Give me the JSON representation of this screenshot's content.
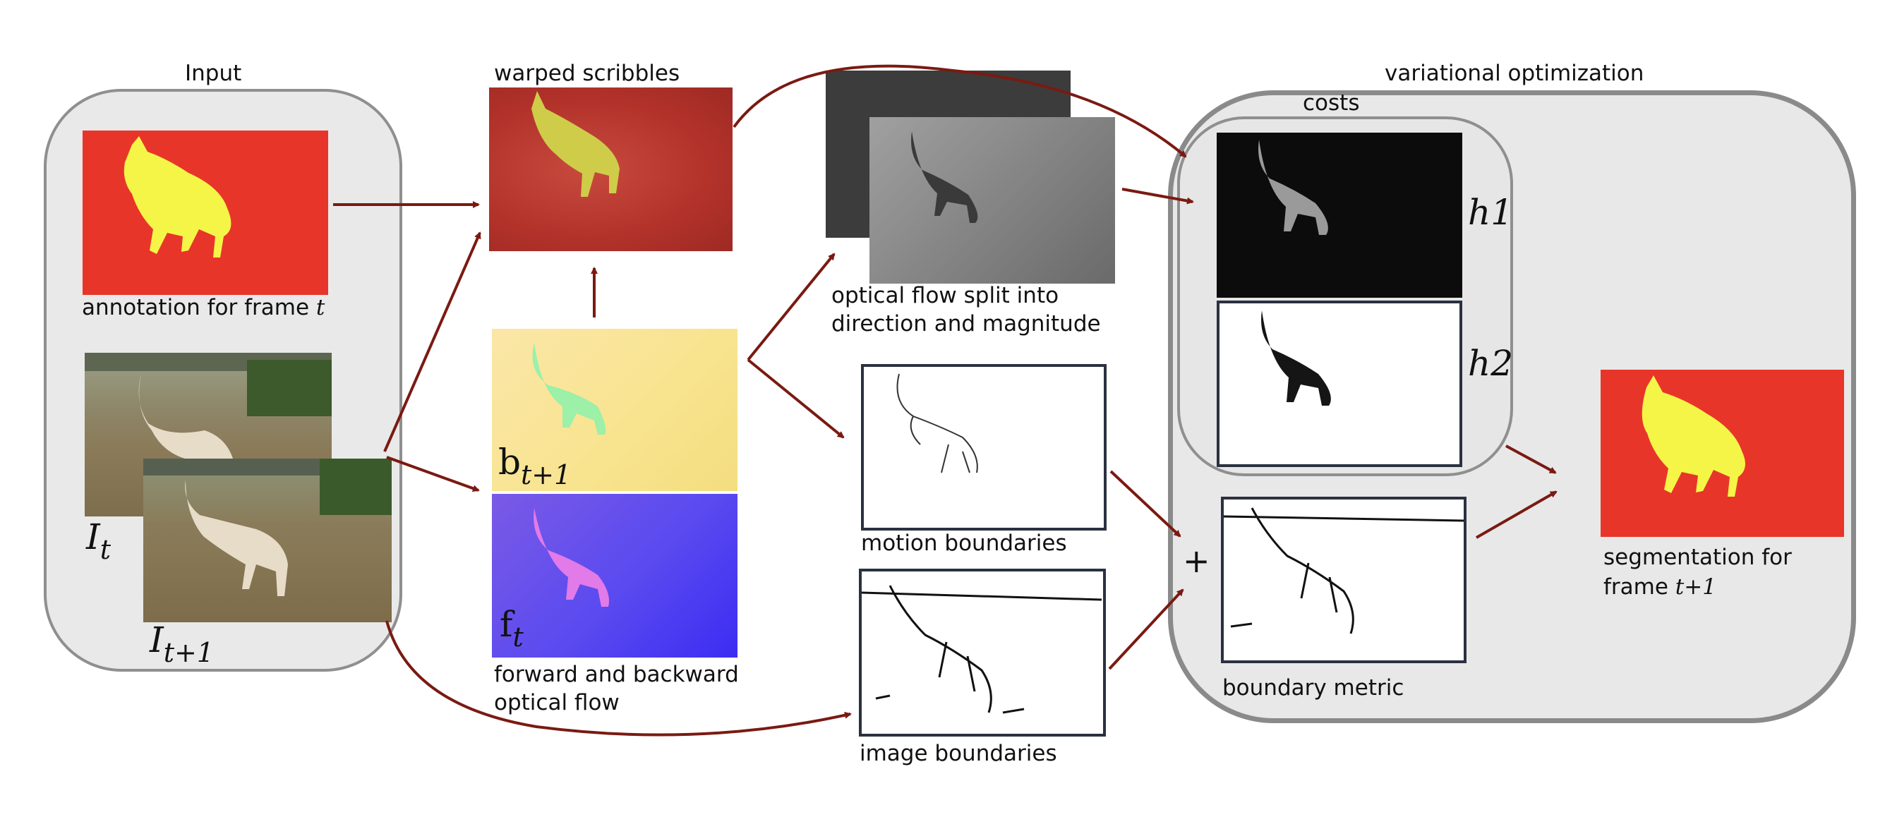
{
  "labels": {
    "input": "Input",
    "warped": "warped scribbles",
    "variational": "variational optimization",
    "costs": "costs",
    "annotation_prefix": "annotation for frame ",
    "annotation_var": "t",
    "flow_split_1": "optical flow split into",
    "flow_split_2": "direction and magnitude",
    "motion_boundaries": "motion boundaries",
    "image_boundaries": "image boundaries",
    "fb_flow_1": "forward and backward",
    "fb_flow_2": "optical flow",
    "boundary_metric": "boundary metric",
    "segmentation_1": "segmentation for",
    "segmentation_2_prefix": "frame ",
    "segmentation_2_var": "t+1",
    "plus": "+"
  },
  "math": {
    "It_base": "I",
    "It_sub": "t",
    "It1_base": "I",
    "It1_sub": "t+1",
    "bt1_base": "b",
    "bt1_sub": "t+1",
    "ft_base": "f",
    "ft_sub": "t",
    "h1": "h1",
    "h2": "h2"
  },
  "colors": {
    "arrow": "#7a1a12",
    "mask_bg": "#e8352a",
    "mask_fg": "#f5f547",
    "group_fill": "#e9e9e9",
    "group_border": "#8f8f8f",
    "frame_border": "#2a3140"
  }
}
